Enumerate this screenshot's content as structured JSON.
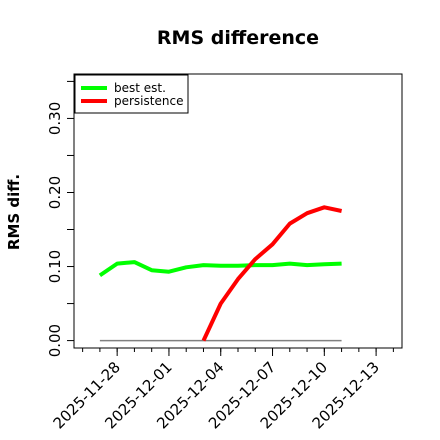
{
  "chart_data": {
    "type": "line",
    "title": "RMS difference",
    "xlabel": "",
    "ylabel": "RMS diff.",
    "x_ticks": [
      "2025-11-28",
      "2025-12-01",
      "2025-12-04",
      "2025-12-07",
      "2025-12-10",
      "2025-12-13"
    ],
    "y_ticks": [
      "0.00",
      "0.10",
      "0.20",
      "0.30"
    ],
    "ylim": [
      -0.01,
      0.36
    ],
    "xlim": [
      "2025-11-25T12:00",
      "2025-12-14T12:00"
    ],
    "grid": false,
    "legend_position": "top-left",
    "reference_line": {
      "y": 0,
      "x_start": "2025-11-27",
      "x_end": "2025-12-11",
      "color": "#808080"
    },
    "series": [
      {
        "name": "best est.",
        "color": "#00ff00",
        "x": [
          "2025-11-27",
          "2025-11-28",
          "2025-11-29",
          "2025-11-30",
          "2025-12-01",
          "2025-12-02",
          "2025-12-03",
          "2025-12-04",
          "2025-12-05",
          "2025-12-06",
          "2025-12-07",
          "2025-12-08",
          "2025-12-09",
          "2025-12-10",
          "2025-12-11"
        ],
        "values": [
          0.088,
          0.104,
          0.106,
          0.095,
          0.093,
          0.099,
          0.102,
          0.101,
          0.101,
          0.102,
          0.102,
          0.104,
          0.102,
          0.103,
          0.104
        ]
      },
      {
        "name": "persistence",
        "color": "#ff0000",
        "x": [
          "2025-12-03",
          "2025-12-04",
          "2025-12-05",
          "2025-12-06",
          "2025-12-07",
          "2025-12-08",
          "2025-12-09",
          "2025-12-10",
          "2025-12-11"
        ],
        "values": [
          0.0,
          0.05,
          0.083,
          0.11,
          0.13,
          0.158,
          0.172,
          0.18,
          0.175
        ]
      }
    ]
  }
}
